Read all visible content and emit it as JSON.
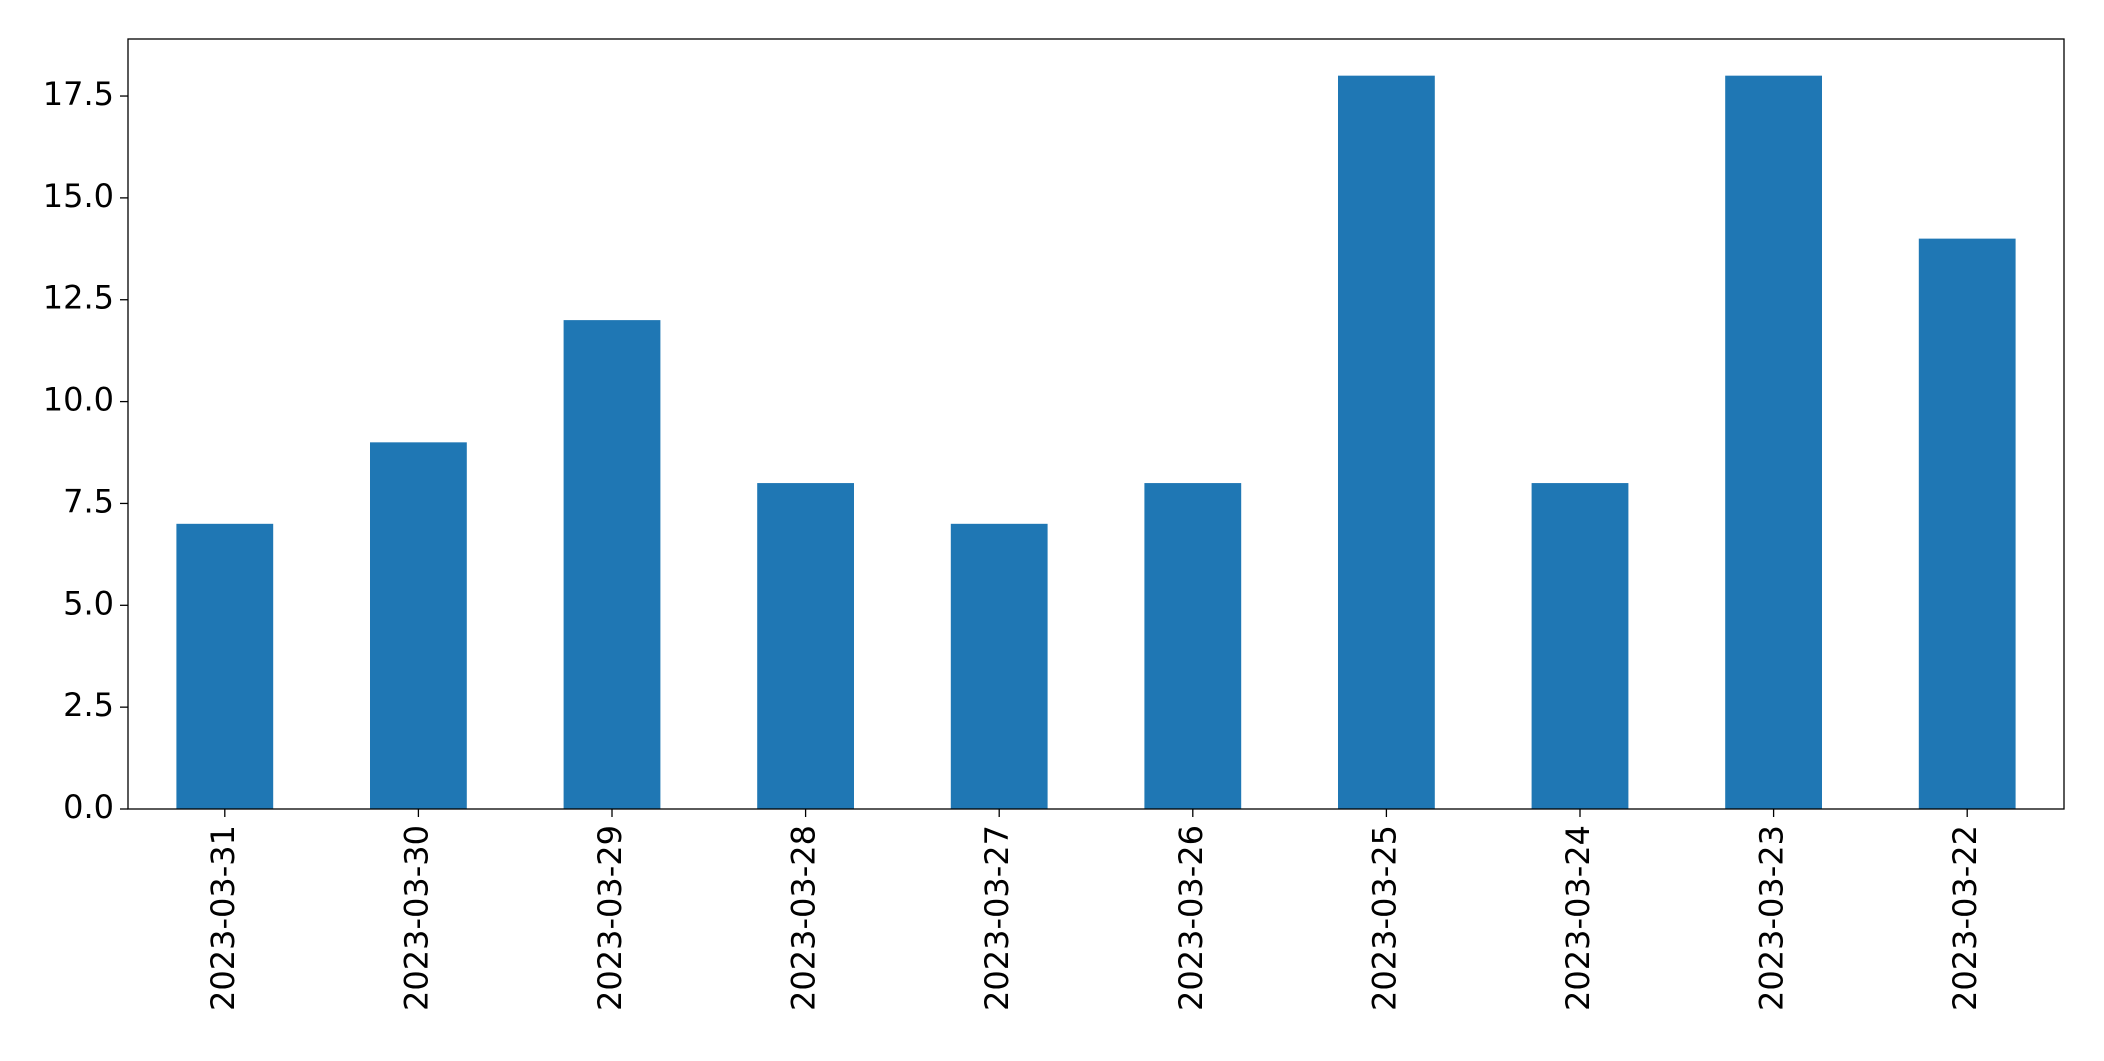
{
  "chart_data": {
    "type": "bar",
    "categories": [
      "2023-03-31",
      "2023-03-30",
      "2023-03-29",
      "2023-03-28",
      "2023-03-27",
      "2023-03-26",
      "2023-03-25",
      "2023-03-24",
      "2023-03-23",
      "2023-03-22"
    ],
    "values": [
      7,
      9,
      12,
      8,
      7,
      8,
      18,
      8,
      18,
      14
    ],
    "color": "#1f77b4",
    "ylim": [
      0,
      18.9
    ],
    "yticks": [
      {
        "value": 0,
        "label": "0.0"
      },
      2.5,
      {
        "value": 5,
        "label": "5.0"
      },
      7.5,
      {
        "value": 10,
        "label": "10.0"
      },
      12.5,
      {
        "value": 15,
        "label": "15.0"
      },
      17.5
    ],
    "grid": false
  }
}
